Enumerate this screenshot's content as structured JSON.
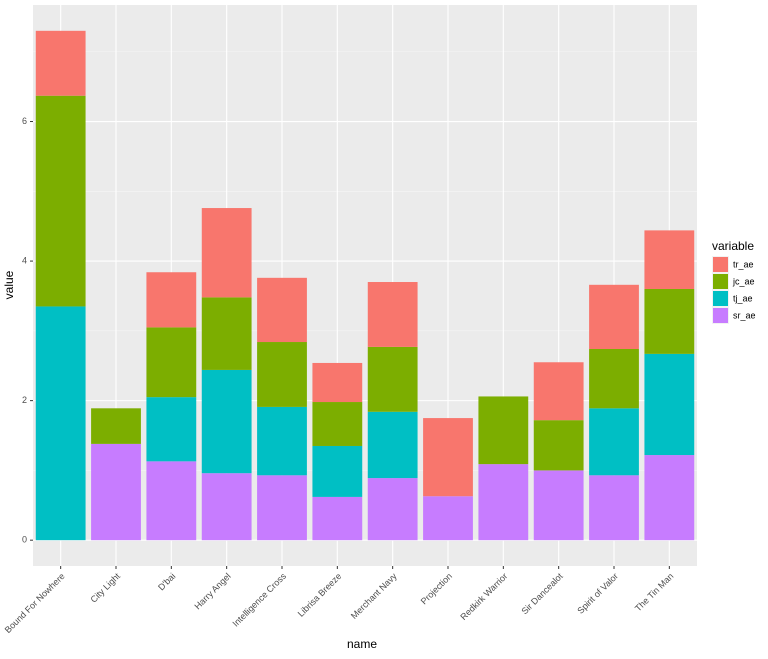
{
  "chart_data": {
    "type": "stacked_bar",
    "x_label": "name",
    "y_label": "value",
    "legend_title": "variable",
    "categories": [
      "Bound For Nowhere",
      "City Light",
      "D'bai",
      "Harry Angel",
      "Intelligence Cross",
      "Librisa Breeze",
      "Merchant Navy",
      "Projection",
      "Redkirk Warrior",
      "Sir Dancealot",
      "Spirit of Valor",
      "The Tin Man"
    ],
    "series": [
      {
        "name": "tr_ae",
        "color": "#F8766D",
        "values": [
          0.93,
          0,
          0.79,
          1.28,
          0.92,
          0.56,
          0.93,
          1.12,
          0,
          0.83,
          0.92,
          0.84
        ]
      },
      {
        "name": "jc_ae",
        "color": "#7CAE00",
        "values": [
          3.02,
          0.51,
          1.0,
          1.04,
          0.93,
          0.63,
          0.93,
          0,
          0.97,
          0.72,
          0.85,
          0.93
        ]
      },
      {
        "name": "tj_ae",
        "color": "#00BFC4",
        "values": [
          3.35,
          0,
          0.92,
          1.48,
          0.98,
          0.73,
          0.95,
          0,
          0,
          0,
          0.96,
          1.45
        ]
      },
      {
        "name": "sr_ae",
        "color": "#C77CFF",
        "values": [
          0,
          1.38,
          1.13,
          0.96,
          0.93,
          0.62,
          0.89,
          0.63,
          1.09,
          1.0,
          0.93,
          1.22
        ]
      }
    ],
    "ylim": [
      -0.37,
      7.67
    ],
    "yticks": [
      0,
      2,
      4,
      6
    ],
    "grid": true
  }
}
